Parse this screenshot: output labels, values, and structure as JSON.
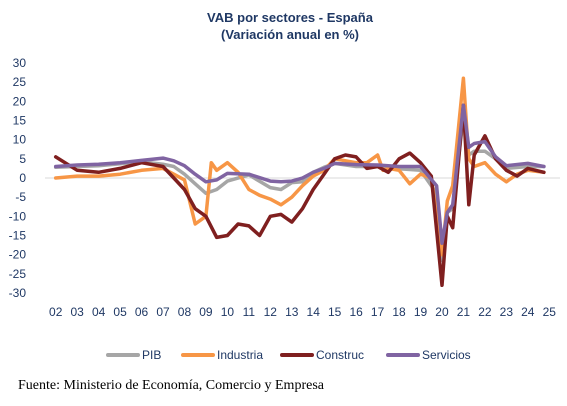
{
  "chart_data": {
    "type": "line",
    "title": "VAB por sectores - España",
    "subtitle": "(Variación anual en %)",
    "xlabel": "",
    "ylabel": "",
    "ylim": [
      -30,
      30
    ],
    "yticks": [
      -30,
      -25,
      -20,
      -15,
      -10,
      -5,
      0,
      5,
      10,
      15,
      20,
      25,
      30
    ],
    "xlim": [
      2001.5,
      2025.5
    ],
    "xticks": [
      "02",
      "03",
      "04",
      "05",
      "06",
      "07",
      "08",
      "09",
      "10",
      "11",
      "12",
      "13",
      "14",
      "15",
      "16",
      "17",
      "18",
      "19",
      "20",
      "21",
      "22",
      "23",
      "24",
      "25"
    ],
    "grid": false,
    "legend_position": "bottom",
    "series": [
      {
        "name": "PIB",
        "color": "#a6a6a6",
        "x": [
          2002.0,
          2003.0,
          2004.0,
          2005.0,
          2006.0,
          2007.0,
          2007.5,
          2008.0,
          2008.5,
          2009.0,
          2009.5,
          2010.0,
          2011.0,
          2012.0,
          2012.5,
          2013.0,
          2013.5,
          2014.0,
          2014.5,
          2015.0,
          2016.0,
          2017.0,
          2018.0,
          2019.0,
          2019.75,
          2020.0,
          2020.25,
          2020.5,
          2021.0,
          2021.25,
          2021.5,
          2022.0,
          2022.5,
          2023.0,
          2024.0,
          2024.75
        ],
        "y": [
          2.8,
          3.0,
          3.2,
          3.7,
          4.2,
          3.6,
          3.0,
          1.0,
          -1.5,
          -4.0,
          -3.0,
          -0.8,
          0.8,
          -2.5,
          -3.0,
          -1.2,
          -1.0,
          1.5,
          2.8,
          3.8,
          3.0,
          3.0,
          2.4,
          2.0,
          -4.0,
          -21.5,
          -9.0,
          -8.0,
          16.0,
          6.0,
          7.0,
          7.0,
          5.0,
          2.5,
          3.0,
          3.0
        ]
      },
      {
        "name": "Industria",
        "color": "#f79646",
        "x": [
          2002.0,
          2003.0,
          2004.0,
          2005.0,
          2006.0,
          2007.0,
          2007.5,
          2008.0,
          2008.5,
          2009.0,
          2009.25,
          2009.5,
          2010.0,
          2010.5,
          2011.0,
          2011.5,
          2012.0,
          2012.5,
          2013.0,
          2013.5,
          2014.0,
          2014.5,
          2015.0,
          2016.0,
          2016.5,
          2017.0,
          2017.25,
          2017.5,
          2018.0,
          2018.5,
          2019.0,
          2019.5,
          2020.0,
          2020.25,
          2020.5,
          2021.0,
          2021.25,
          2021.5,
          2022.0,
          2022.5,
          2023.0,
          2023.5,
          2024.0,
          2024.75
        ],
        "y": [
          0.0,
          0.5,
          0.5,
          1.0,
          2.0,
          2.5,
          1.0,
          -0.5,
          -12.0,
          -10.0,
          4.0,
          2.0,
          4.0,
          1.5,
          -3.0,
          -4.5,
          -5.5,
          -7.0,
          -5.0,
          -2.0,
          0.5,
          2.0,
          5.0,
          4.0,
          4.0,
          6.0,
          2.0,
          2.5,
          2.0,
          -1.5,
          1.0,
          0.0,
          -20.0,
          -6.0,
          -2.0,
          26.0,
          5.0,
          3.0,
          4.0,
          1.0,
          -1.0,
          1.0,
          2.0,
          1.5
        ]
      },
      {
        "name": "Construc",
        "color": "#7f1f1f",
        "x": [
          2002.0,
          2003.0,
          2004.0,
          2005.0,
          2006.0,
          2007.0,
          2007.5,
          2008.0,
          2008.5,
          2009.0,
          2009.5,
          2010.0,
          2010.5,
          2011.0,
          2011.5,
          2012.0,
          2012.5,
          2013.0,
          2013.5,
          2014.0,
          2014.5,
          2015.0,
          2015.5,
          2016.0,
          2016.5,
          2017.0,
          2017.5,
          2018.0,
          2018.5,
          2019.0,
          2019.5,
          2020.0,
          2020.25,
          2020.5,
          2021.0,
          2021.25,
          2021.5,
          2022.0,
          2022.5,
          2023.0,
          2023.5,
          2024.0,
          2024.75
        ],
        "y": [
          5.5,
          2.0,
          1.5,
          2.5,
          4.0,
          3.0,
          0.0,
          -3.0,
          -8.0,
          -10.0,
          -15.5,
          -15.0,
          -12.0,
          -12.5,
          -15.0,
          -10.0,
          -9.5,
          -11.5,
          -8.0,
          -3.0,
          1.0,
          5.0,
          6.0,
          5.5,
          2.5,
          3.0,
          1.5,
          5.0,
          6.5,
          4.0,
          0.5,
          -28.0,
          -10.0,
          -13.0,
          19.0,
          -7.0,
          6.0,
          11.0,
          5.0,
          2.0,
          0.5,
          2.5,
          1.5
        ]
      },
      {
        "name": "Servicios",
        "color": "#8064a2",
        "x": [
          2002.0,
          2003.0,
          2004.0,
          2005.0,
          2006.0,
          2007.0,
          2007.5,
          2008.0,
          2008.5,
          2009.0,
          2009.5,
          2010.0,
          2011.0,
          2012.0,
          2012.5,
          2013.0,
          2013.5,
          2014.0,
          2014.5,
          2015.0,
          2016.0,
          2017.0,
          2018.0,
          2019.0,
          2019.75,
          2020.0,
          2020.25,
          2020.5,
          2021.0,
          2021.25,
          2021.5,
          2022.0,
          2022.5,
          2023.0,
          2024.0,
          2024.75
        ],
        "y": [
          3.0,
          3.4,
          3.6,
          4.0,
          4.6,
          5.2,
          4.5,
          3.2,
          1.0,
          -1.0,
          -0.5,
          1.2,
          1.0,
          -0.8,
          -1.0,
          -0.8,
          0.0,
          1.5,
          2.5,
          3.8,
          3.5,
          3.4,
          3.0,
          3.0,
          -2.0,
          -17.0,
          -9.0,
          -7.0,
          19.0,
          8.0,
          9.0,
          9.5,
          5.5,
          3.2,
          3.8,
          3.0
        ]
      }
    ]
  },
  "source_text": "Fuente: Ministerio de Economía, Comercio y Empresa"
}
